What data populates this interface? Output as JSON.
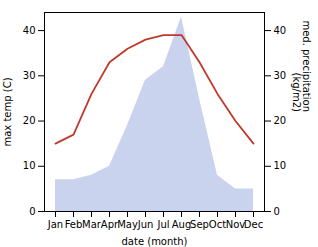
{
  "chart_data": {
    "type": "line",
    "categories": [
      "Jan",
      "Feb",
      "Mar",
      "Apr",
      "May",
      "Jun",
      "Jul",
      "Aug",
      "Sep",
      "Oct",
      "Nov",
      "Dec"
    ],
    "series": [
      {
        "type": "area",
        "axis": "y2",
        "color": "#b8c4e8",
        "values": [
          7,
          7,
          8,
          10,
          19,
          29,
          32,
          43,
          25,
          8,
          5,
          5
        ]
      },
      {
        "type": "line",
        "color": "#c0392b",
        "values": [
          15,
          17,
          26,
          33,
          36,
          38,
          39,
          39,
          33,
          26,
          20,
          15
        ]
      }
    ],
    "xlabel": "date (month)",
    "ylabel": "max temp (C)",
    "y2label": "med. precipitation\n(kg/m2)",
    "ylim": [
      0,
      44
    ],
    "yticks": [
      0,
      10,
      20,
      30,
      40
    ],
    "y2lim": [
      0,
      44
    ],
    "y2ticks": [
      0,
      10,
      20,
      30,
      40
    ],
    "grid": false
  }
}
